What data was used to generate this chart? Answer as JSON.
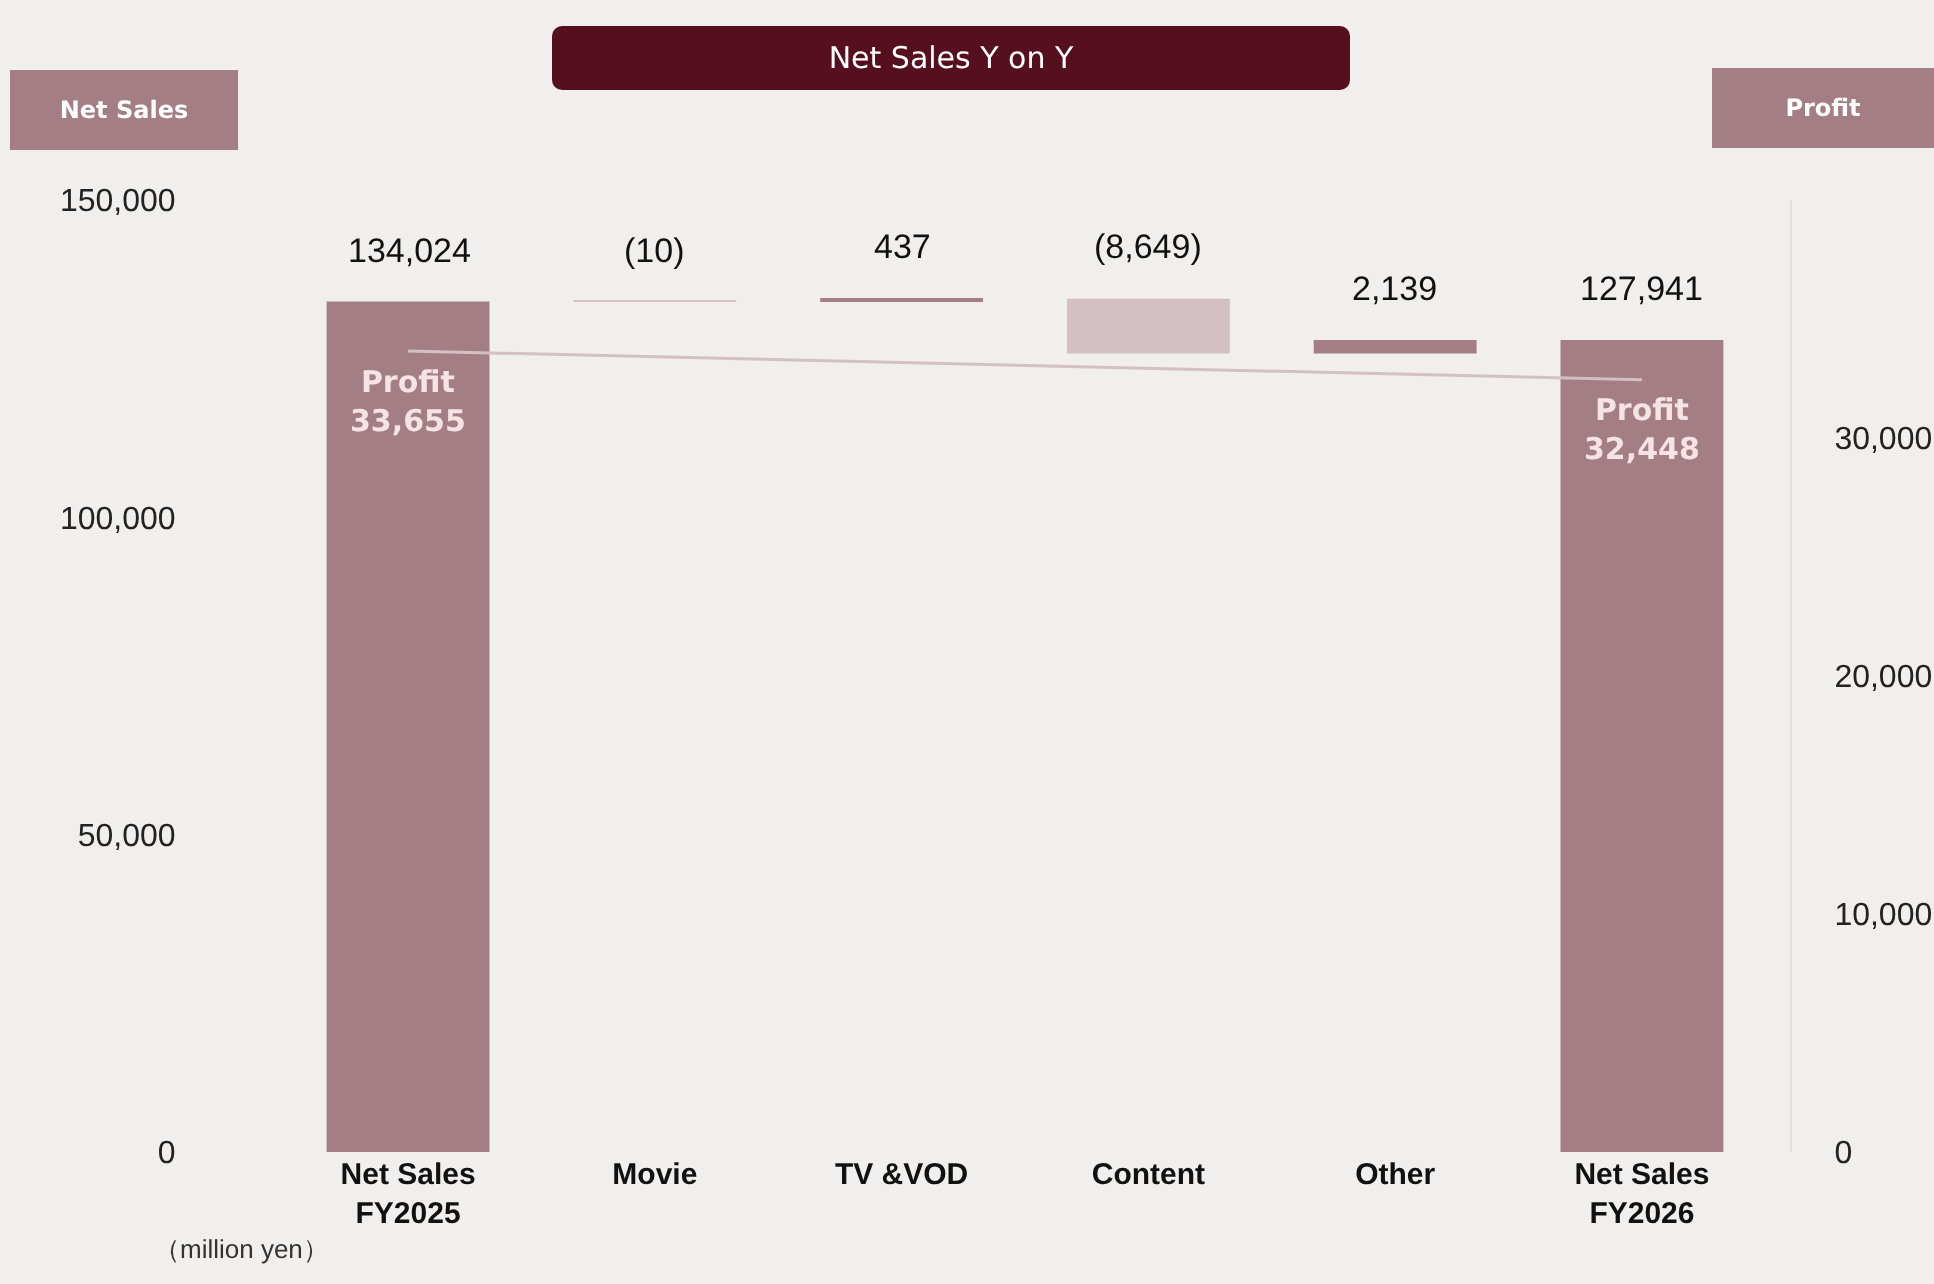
{
  "chart_data": {
    "type": "bar",
    "title": "Net Sales Y on Y",
    "ylabel": "Net Sales",
    "y2label": "Profit",
    "annotations": [
      "（million yen）"
    ],
    "categories": [
      "Net Sales\nFY2025",
      "Movie",
      "TV &VOD",
      "Content",
      "Other",
      "Net Sales\nFY2026"
    ],
    "base": [
      0,
      134024,
      134014,
      134451,
      125802,
      0
    ],
    "values": [
      134024,
      -10,
      437,
      -8649,
      2139,
      127941
    ],
    "colors": [
      "#a37e84",
      "#d4bfc2",
      "#a37e84",
      "#d4bfc2",
      "#a37e84",
      "#a37e84"
    ],
    "value_labels": [
      "134,024",
      "(10)",
      "437",
      "(8,649)",
      "2,139",
      "127,941"
    ],
    "series": [
      {
        "name": "Profit",
        "type": "line",
        "axis": "y2",
        "color": "#d4bfc2",
        "x": [
          "Net Sales\nFY2025",
          "Net Sales\nFY2026"
        ],
        "values": [
          33655,
          32448
        ],
        "value_labels": [
          "33,655",
          "32,448"
        ]
      }
    ],
    "ylim": [
      0,
      150000
    ],
    "yticks": [
      0,
      {
        "value": 50000,
        "label": "50,000"
      },
      {
        "value": 100000,
        "label": "100,000"
      },
      {
        "value": 150000,
        "label": "150,000"
      }
    ],
    "y2lim": [
      0,
      40000
    ],
    "y2ticks": [
      0,
      {
        "value": 10000,
        "label": "10,000"
      },
      {
        "value": 20000,
        "label": "20,000"
      },
      {
        "value": 30000,
        "label": "30,000"
      }
    ],
    "grid": false,
    "legend": false,
    "marker": "none"
  }
}
